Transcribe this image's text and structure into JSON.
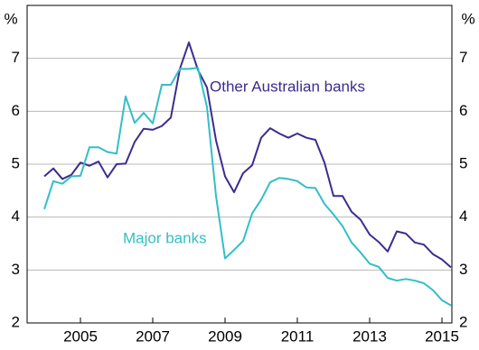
{
  "chart_data": {
    "type": "line",
    "x": [
      2004.5,
      2004.75,
      2005,
      2005.25,
      2005.5,
      2005.75,
      2006,
      2006.25,
      2006.5,
      2006.75,
      2007,
      2007.25,
      2007.5,
      2007.75,
      2008,
      2008.25,
      2008.5,
      2008.75,
      2009,
      2009.25,
      2009.5,
      2009.75,
      2010,
      2010.25,
      2010.5,
      2010.75,
      2011,
      2011.25,
      2011.5,
      2011.75,
      2012,
      2012.25,
      2012.5,
      2012.75,
      2013,
      2013.25,
      2013.5,
      2013.75,
      2014,
      2014.25,
      2014.5,
      2014.75,
      2015,
      2015.25,
      2015.5,
      2015.75
    ],
    "series": [
      {
        "name": "Other Australian banks",
        "color": "#3b2d8f",
        "values": [
          4.77,
          4.92,
          4.72,
          4.8,
          5.03,
          4.97,
          5.05,
          4.75,
          5.0,
          5.01,
          5.42,
          5.67,
          5.65,
          5.72,
          5.88,
          6.8,
          7.3,
          6.78,
          6.45,
          5.45,
          4.77,
          4.47,
          4.83,
          4.98,
          5.5,
          5.68,
          5.58,
          5.5,
          5.58,
          5.5,
          5.46,
          5.03,
          4.4,
          4.4,
          4.1,
          3.95,
          3.67,
          3.53,
          3.35,
          3.73,
          3.69,
          3.52,
          3.48,
          3.3,
          3.2,
          3.05
        ]
      },
      {
        "name": "Major banks",
        "color": "#32bfc6",
        "values": [
          4.15,
          4.68,
          4.63,
          4.77,
          4.78,
          5.32,
          5.32,
          5.23,
          5.2,
          6.28,
          5.78,
          5.97,
          5.77,
          6.5,
          6.5,
          6.8,
          6.8,
          6.82,
          6.08,
          4.4,
          3.22,
          3.38,
          3.55,
          4.07,
          4.33,
          4.66,
          4.74,
          4.72,
          4.68,
          4.56,
          4.55,
          4.25,
          4.05,
          3.83,
          3.52,
          3.33,
          3.12,
          3.06,
          2.85,
          2.8,
          2.83,
          2.8,
          2.75,
          2.62,
          2.43,
          2.33
        ]
      }
    ],
    "xlim": [
      2004.025,
      2015.775
    ],
    "xticks": [
      {
        "value": 2005.5,
        "label": "2005"
      },
      {
        "value": 2007.5,
        "label": "2007"
      },
      {
        "value": 2009.5,
        "label": "2009"
      },
      {
        "value": 2011.5,
        "label": "2011"
      },
      {
        "value": 2013.5,
        "label": "2013"
      },
      {
        "value": 2015.5,
        "label": "2015"
      }
    ],
    "ylim": [
      2,
      8
    ],
    "yticks": [
      2,
      3,
      4,
      5,
      6,
      7
    ],
    "ylabel": "%",
    "y2lim": [
      2,
      8
    ],
    "y2ticks": [
      2,
      3,
      4,
      5,
      6,
      7
    ],
    "y2label": "%",
    "grid": true
  }
}
